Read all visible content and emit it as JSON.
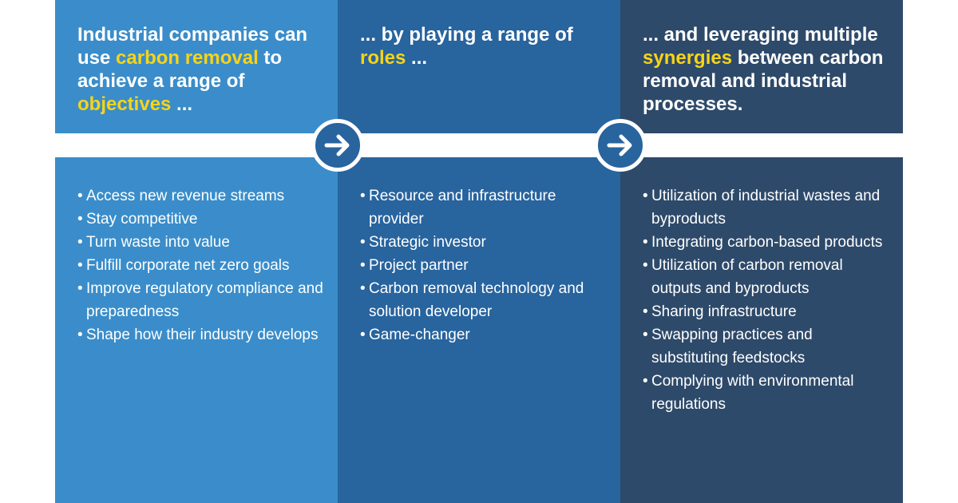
{
  "columns": [
    {
      "heading": {
        "pre": "Industrial companies can use ",
        "highlight": "carbon removal",
        "mid": " to achieve a range of ",
        "highlight2": "objectives",
        "post": " ..."
      },
      "items": [
        "Access new revenue streams",
        "Stay competitive",
        "Turn waste into value",
        "Fulfill corporate net zero goals",
        "Improve regulatory compliance and preparedness",
        "Shape how their industry develops"
      ]
    },
    {
      "heading": {
        "pre": "... by playing a range of ",
        "highlight": "roles",
        "post": " ..."
      },
      "items": [
        "Resource and infrastructure provider",
        "Strategic investor",
        "Project partner",
        "Carbon removal technology and solution developer",
        "Game-changer"
      ]
    },
    {
      "heading": {
        "pre": "... and leveraging multiple ",
        "highlight": "synergies",
        "post": " between carbon removal and industrial processes."
      },
      "items": [
        "Utilization of industrial wastes and byproducts",
        "Integrating carbon-based products",
        "Utilization of carbon removal outputs and byproducts",
        "Sharing infrastructure",
        "Swapping practices and substituting feedstocks",
        "Complying with environmental regulations"
      ]
    }
  ],
  "icons": [
    "arrow-right-icon",
    "arrow-right-icon"
  ],
  "colors": {
    "col1": "#3A8DCA",
    "col2": "#28649E",
    "col3": "#2E4A6A",
    "highlight": "#F7D417"
  }
}
